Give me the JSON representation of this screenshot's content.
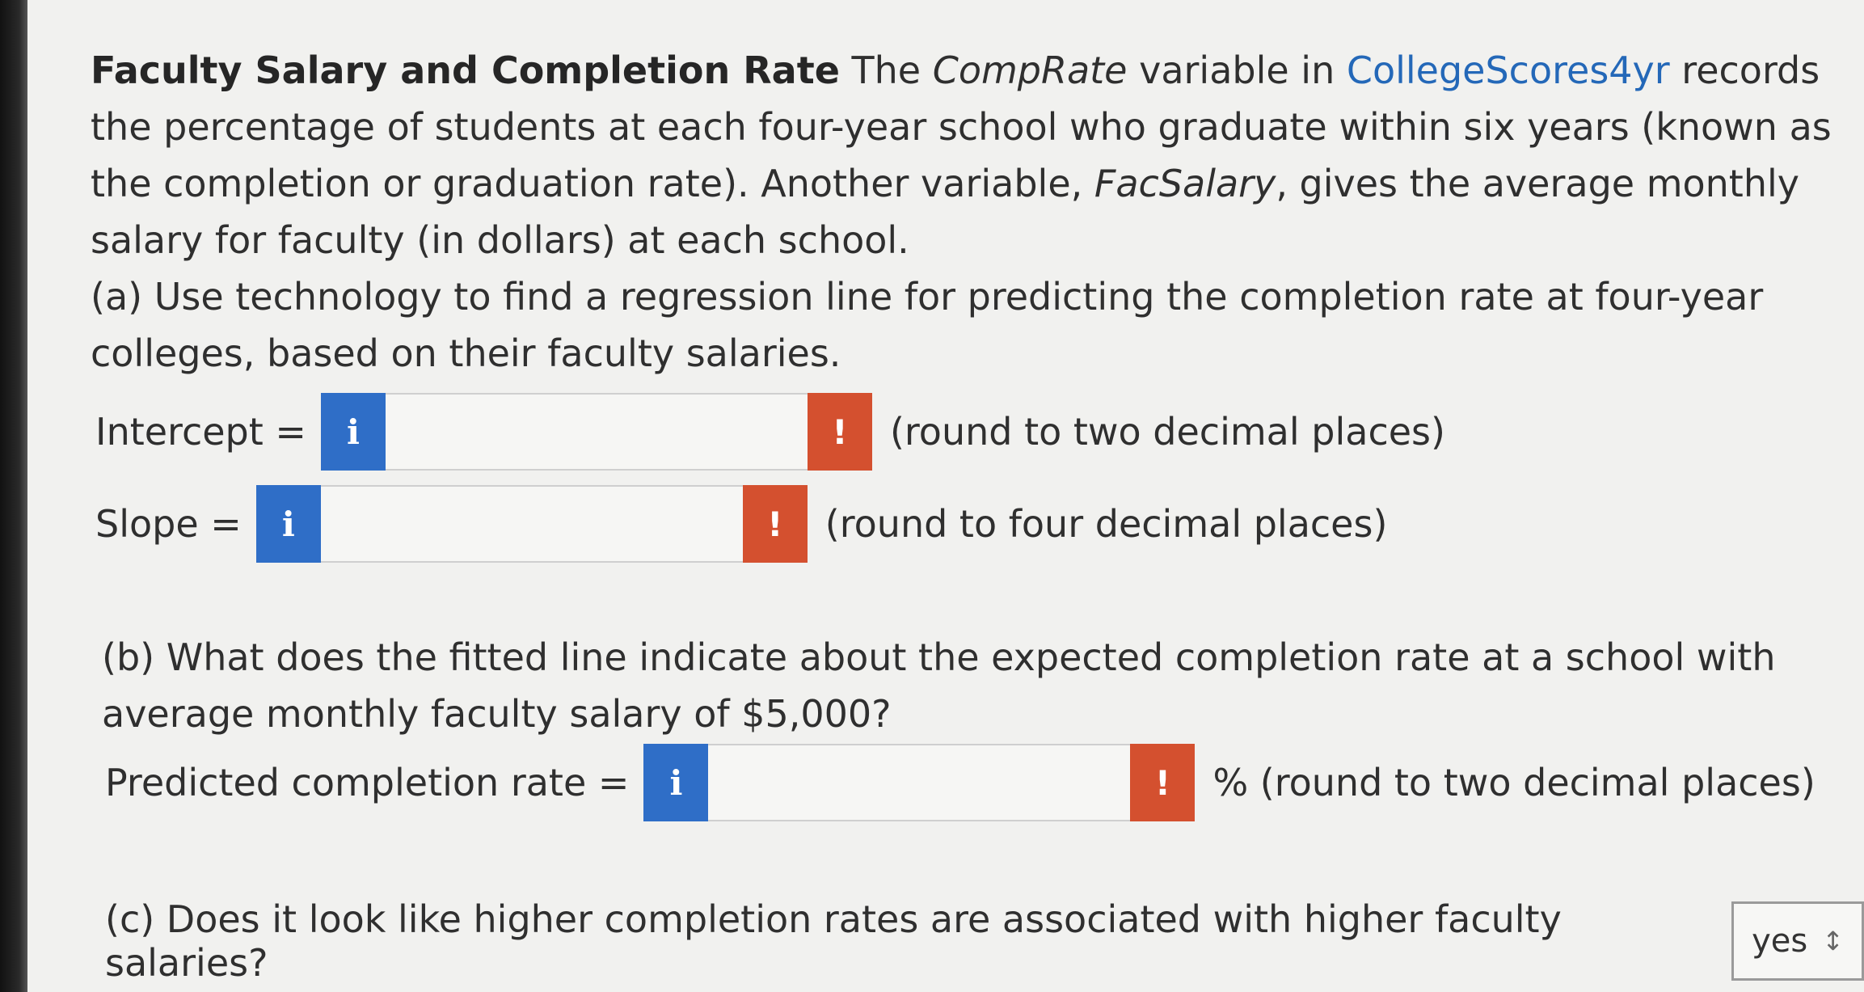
{
  "problem": {
    "title": "Faculty Salary and Completion Rate",
    "intro_1": " The ",
    "var_comprate": "CompRate",
    "intro_2": " variable in ",
    "dataset": "CollegeScores4yr",
    "intro_3": " records the percentage of students at each four-year school who graduate within six years (known as the completion or graduation rate). Another variable, ",
    "var_facsalary": "FacSalary",
    "intro_4": ", gives the average monthly salary for faculty (in dollars) at each school."
  },
  "part_a": {
    "question": "(a) Use technology to find a regression line for predicting the completion rate at four-year colleges, based on their faculty salaries.",
    "intercept_label": "Intercept =",
    "intercept_value": "",
    "intercept_hint": "(round to two decimal places)",
    "slope_label": "Slope =",
    "slope_value": "",
    "slope_hint": "(round to four decimal places)"
  },
  "part_b": {
    "question": "(b) What does the fitted line indicate about the expected completion rate at a school with average monthly faculty salary of $5,000?",
    "label": "Predicted completion rate =",
    "value": "",
    "hint": "% (round to two decimal places)"
  },
  "part_c": {
    "question": "(c) Does it look like higher completion rates are associated with higher faculty salaries?",
    "selected": "yes"
  },
  "buttons": {
    "info": "i",
    "warn": "!"
  },
  "icons": {
    "info": "info-icon",
    "warn": "exclamation-icon",
    "select": "chevron-updown-icon"
  },
  "colors": {
    "info_blue": "#2f6ec7",
    "warn_red": "#d4502f",
    "link_blue": "#2468b8"
  }
}
